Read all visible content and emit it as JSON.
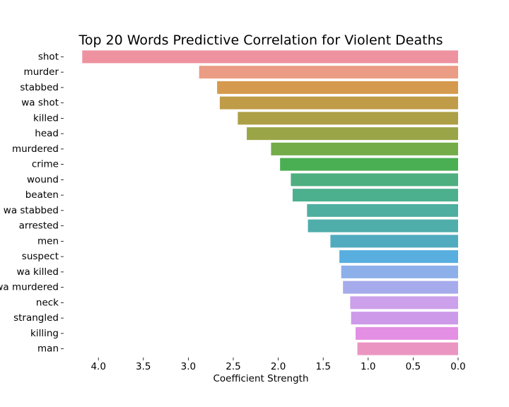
{
  "chart_data": {
    "type": "bar",
    "orientation": "horizontal",
    "title": "Top 20 Words Predictive Correlation for Violent Deaths",
    "xlabel": "Coefficient Strength",
    "ylabel": "",
    "x_axis_inverted": true,
    "xlim": [
      4.4,
      0.0
    ],
    "x_ticks": [
      "4.0",
      "3.5",
      "3.0",
      "2.5",
      "2.0",
      "1.5",
      "1.0",
      "0.5",
      "0.0"
    ],
    "categories": [
      "shot",
      "murder",
      "stabbed",
      "wa shot",
      "killed",
      "head",
      "murdered",
      "crime",
      "wound",
      "beaten",
      "wa stabbed",
      "arrested",
      "men",
      "suspect",
      "wa killed",
      "wa murdered",
      "neck",
      "strangled",
      "killing",
      "man"
    ],
    "values": [
      4.18,
      2.88,
      2.68,
      2.65,
      2.45,
      2.35,
      2.08,
      1.98,
      1.86,
      1.84,
      1.68,
      1.67,
      1.42,
      1.32,
      1.3,
      1.28,
      1.2,
      1.19,
      1.14,
      1.12
    ],
    "colors": [
      "#ee929f",
      "#eb9c84",
      "#d59a4d",
      "#c09c48",
      "#ad9f45",
      "#9aa547",
      "#73ac49",
      "#4aaf53",
      "#4daf80",
      "#4caf8d",
      "#4eae9f",
      "#4fadaa",
      "#51abbe",
      "#58aedf",
      "#8eb0ea",
      "#a6abeb",
      "#cca0ea",
      "#cd9ae9",
      "#e38fe4",
      "#eb96c2"
    ],
    "grid": false,
    "legend": "none"
  }
}
